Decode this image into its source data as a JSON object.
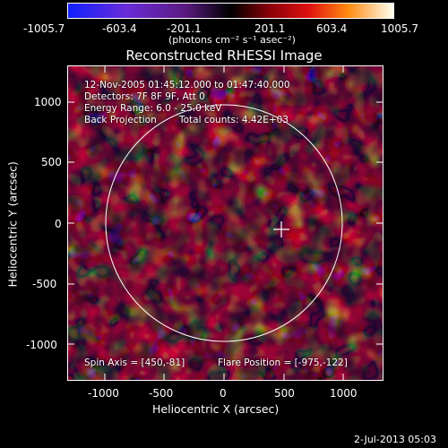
{
  "colorbar": {
    "ticks": [
      "-1005.7",
      "-603.4",
      "-201.1",
      "201.1",
      "603.4",
      "1005.7"
    ],
    "unit_label": "(photons cm⁻² s⁻¹ asec⁻²)"
  },
  "title": "Reconstructed RHESSI Image",
  "info": {
    "time_range": "12-Nov-2005 01:45:12.000 to 01:47:40.000",
    "detectors": "Detectors: 7F 8F 9F, Att 0",
    "energy": "Energy Range: 6.0 - 25.0 keV",
    "method": "Back Projection",
    "counts": "Total counts: 4.42E+03",
    "spin_axis": "Spin Axis = [450,-81]",
    "flare_position": "Flare Position = [-975,-122]"
  },
  "axes": {
    "xlabel": "Heliocentric X (arcsec)",
    "ylabel": "Heliocentric Y (arcsec)",
    "xticks": [
      "-1000",
      "-500",
      "0",
      "500",
      "1000"
    ],
    "yticks": [
      "1000",
      "500",
      "0",
      "-500",
      "-1000"
    ]
  },
  "timestamp": "2-Jul-2013 05:03",
  "colors": {
    "solar_limb": "#ffffff",
    "text": "#ffffff",
    "background": "#000000"
  }
}
